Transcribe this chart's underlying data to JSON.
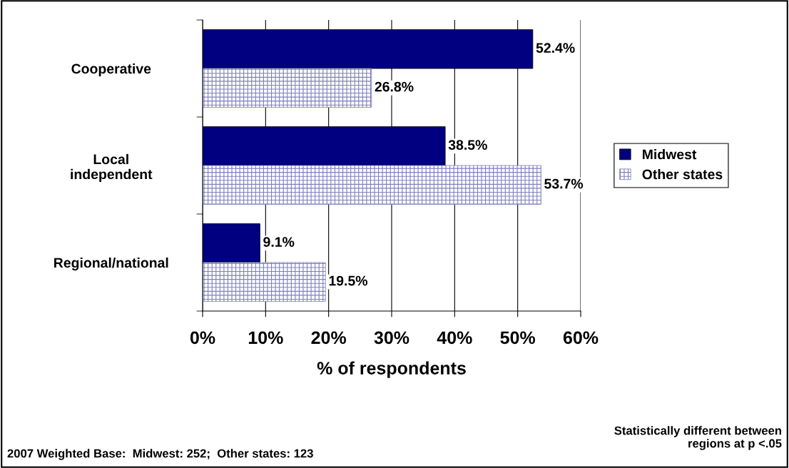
{
  "chart_data": {
    "type": "bar",
    "orientation": "horizontal",
    "xlabel": "% of respondents",
    "categories": [
      "Cooperative",
      "Local\nindependent",
      "Regional/national"
    ],
    "series": [
      {
        "name": "Midwest",
        "color": "#000080",
        "values": [
          52.4,
          38.5,
          9.1
        ],
        "value_labels": [
          "52.4%",
          "38.5%",
          "9.1%"
        ]
      },
      {
        "name": "Other states",
        "color": "#7f7fbf",
        "values": [
          26.8,
          53.7,
          19.5
        ],
        "value_labels": [
          "26.8%",
          "53.7%",
          "19.5%"
        ]
      }
    ],
    "xlim": [
      0,
      60
    ],
    "xticks": [
      {
        "value": 0,
        "label": "0%"
      },
      {
        "value": 10,
        "label": "10%"
      },
      {
        "value": 20,
        "label": "20%"
      },
      {
        "value": 30,
        "label": "30%"
      },
      {
        "value": 40,
        "label": "40%"
      },
      {
        "value": 50,
        "label": "50%"
      },
      {
        "value": 60,
        "label": "60%"
      }
    ],
    "grid": "x",
    "legend": "right",
    "annotations": [
      "2007 Weighted Base:  Midwest: 252;  Other states: 123",
      "Statistically different between\nregions at p <.05"
    ]
  }
}
